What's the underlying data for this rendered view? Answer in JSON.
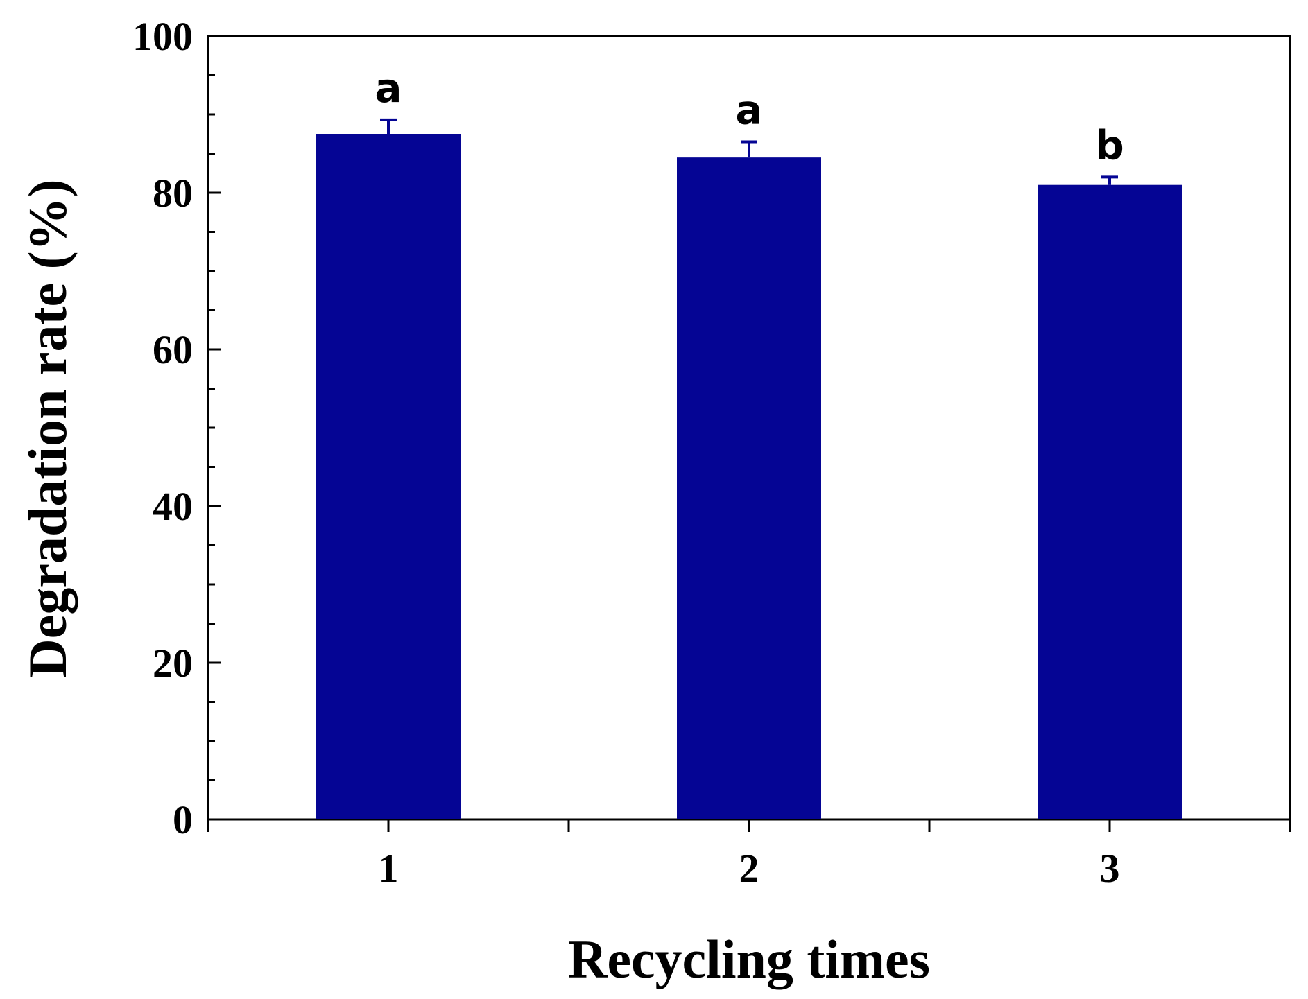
{
  "chart_data": {
    "type": "bar",
    "xlabel": "Recycling times",
    "ylabel": "Degradation rate (%)",
    "categories": [
      "1",
      "2",
      "3"
    ],
    "values": [
      87.5,
      84.5,
      81.0
    ],
    "errors": [
      1.8,
      2.0,
      1.0
    ],
    "annotations": [
      "a",
      "a",
      "b"
    ],
    "ylim": [
      0,
      100
    ],
    "yticks": [
      "0",
      "20",
      "40",
      "60",
      "80",
      "100"
    ],
    "grid": false,
    "colors": {
      "bar": "#050594",
      "axis": "#000000"
    }
  }
}
